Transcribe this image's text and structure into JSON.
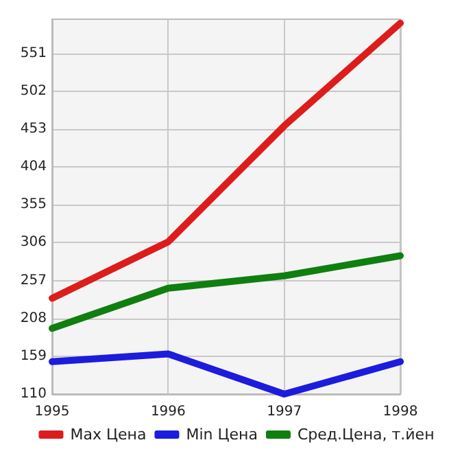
{
  "chart_data": {
    "type": "line",
    "categories": [
      "1995",
      "1996",
      "1997",
      "1998"
    ],
    "series": [
      {
        "name": "Max Цена",
        "color": "#dd1c1c",
        "values": [
          234,
          307,
          457,
          590
        ]
      },
      {
        "name": "Min Цена",
        "color": "#1c1cdd",
        "values": [
          152,
          162,
          110,
          152
        ]
      },
      {
        "name": "Сред.Цена, т.йен",
        "color": "#0f7f0f",
        "values": [
          195,
          247,
          263,
          289
        ]
      }
    ],
    "ylim": [
      110,
      595
    ],
    "yticks": [
      110,
      159,
      208,
      257,
      306,
      355,
      404,
      453,
      502,
      551
    ],
    "grid": true,
    "legend": "bottom",
    "marker": "none",
    "line_style": "solid"
  }
}
